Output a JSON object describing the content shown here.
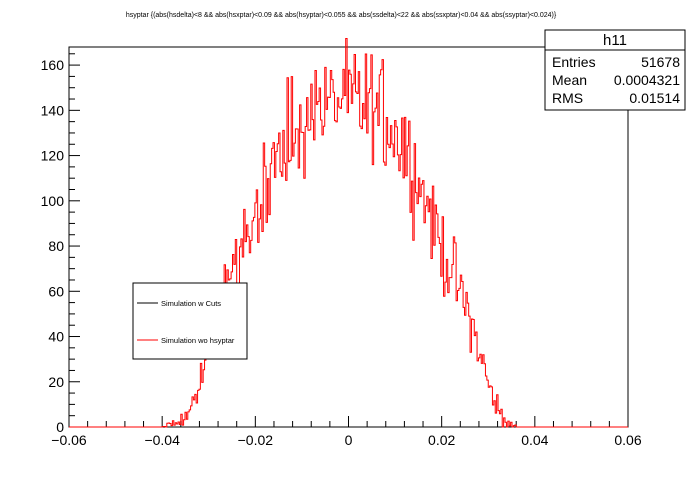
{
  "chart_data": {
    "type": "line",
    "title": "hsyptar {(abs(hsdelta)<8 && abs(hsxptar)<0.09 && abs(hsyptar)<0.055 && abs(ssdelta)<22 && abs(ssxptar)<0.04 && abs(ssyptar)<0.024)}",
    "xlabel": "",
    "ylabel": "",
    "xlim": [
      -0.06,
      0.06
    ],
    "ylim": [
      0,
      168
    ],
    "x_ticks": [
      "−0.06",
      "−0.04",
      "−0.02",
      "0",
      "0.02",
      "0.04",
      "0.06"
    ],
    "x_tick_values": [
      -0.06,
      -0.04,
      -0.02,
      0,
      0.02,
      0.04,
      0.06
    ],
    "y_ticks": [
      "0",
      "20",
      "40",
      "60",
      "80",
      "100",
      "120",
      "140",
      "160"
    ],
    "y_tick_values": [
      0,
      20,
      40,
      60,
      80,
      100,
      120,
      140,
      160
    ],
    "grid": false,
    "legend_position": "left-middle",
    "stats_box": {
      "name": "h11",
      "rows": [
        {
          "label": "Entries",
          "value": "51678"
        },
        {
          "label": "Mean",
          "value": "0.0004321"
        },
        {
          "label": "RMS",
          "value": "0.01514"
        }
      ]
    },
    "series": [
      {
        "name": "Simulation w Cuts",
        "color": "#000000",
        "x": [],
        "y": []
      },
      {
        "name": "Simulation wo hsyptar",
        "color": "#ff0000",
        "x": [
          -0.06,
          -0.04,
          -0.036,
          -0.034,
          -0.032,
          -0.03,
          -0.028,
          -0.026,
          -0.024,
          -0.022,
          -0.02,
          -0.018,
          -0.016,
          -0.014,
          -0.012,
          -0.01,
          -0.008,
          -0.006,
          -0.004,
          -0.002,
          0.0,
          0.002,
          0.004,
          0.006,
          0.008,
          0.01,
          0.012,
          0.014,
          0.016,
          0.018,
          0.02,
          0.022,
          0.024,
          0.026,
          0.028,
          0.03,
          0.032,
          0.034,
          0.036,
          0.04,
          0.06
        ],
        "y": [
          0,
          0,
          2,
          8,
          20,
          35,
          52,
          64,
          75,
          86,
          97,
          106,
          114,
          121,
          127,
          133,
          138,
          141,
          143,
          144,
          144,
          143,
          142,
          140,
          137,
          131,
          125,
          116,
          104,
          92,
          80,
          69,
          60,
          48,
          34,
          19,
          8,
          2,
          0,
          0,
          0
        ]
      }
    ]
  }
}
